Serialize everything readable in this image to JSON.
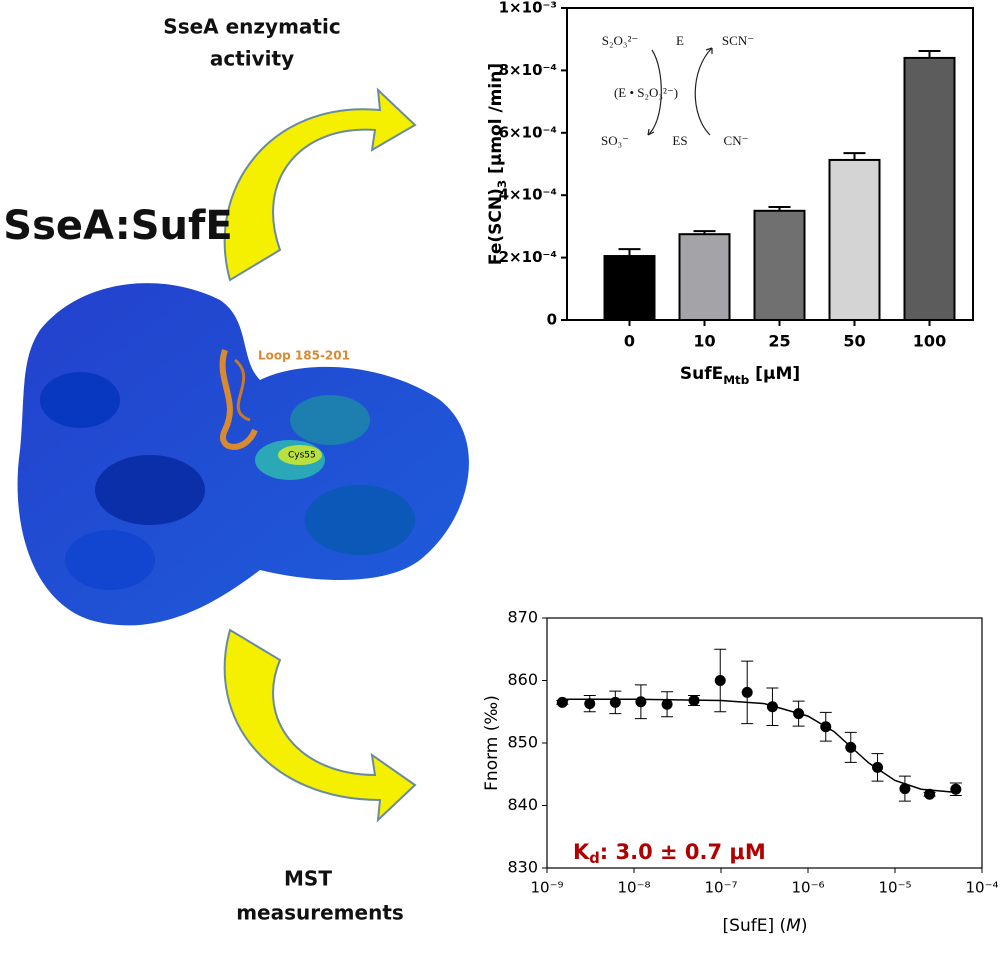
{
  "figure": {
    "title": "SseA:SufE",
    "top_label": [
      "SseA enzymatic",
      "activity"
    ],
    "bottom_label": [
      "MST",
      "measurements"
    ],
    "loop_label": "Loop 185-201",
    "cys_label": "Cys55"
  },
  "chart_data": [
    {
      "type": "bar",
      "categories": [
        "0",
        "10",
        "25",
        "50",
        "100"
      ],
      "values": [
        0.000205,
        0.000275,
        0.00035,
        0.000513,
        0.00084
      ],
      "errors": [
        2.2e-05,
        1e-05,
        1.2e-05,
        2.2e-05,
        2.2e-05
      ],
      "colors": [
        "#000000",
        "#a4a4a8",
        "#707070",
        "#d4d4d4",
        "#5c5c5c"
      ],
      "ylim": [
        0,
        0.001
      ],
      "yticks": [
        0,
        {
          "value": 0.0002,
          "label": "2×10⁻⁴"
        },
        {
          "value": 0.0004,
          "label": "4×10⁻⁴"
        },
        {
          "value": 0.0006,
          "label": "6×10⁻⁴"
        },
        {
          "value": 0.0008,
          "label": "8×10⁻⁴"
        },
        {
          "value": 0.001,
          "label": "1×10⁻³"
        }
      ],
      "x_label": [
        "SufE",
        "Mtb",
        " [µM]"
      ],
      "y_label": [
        "Fe(SCN)",
        "3",
        " [µmol /min]"
      ],
      "annotations": [
        "S₂O₃²⁻",
        "E",
        "SCN⁻",
        "(E • S₂O₃²⁻)",
        "SO₃⁻",
        "ES",
        "CN⁻"
      ]
    },
    {
      "type": "scatter",
      "xlog": true,
      "xlim": [
        1e-09,
        0.0001
      ],
      "xticks": [
        {
          "value": 1e-09,
          "label": "10⁻⁹"
        },
        {
          "value": 1e-08,
          "label": "10⁻⁸"
        },
        {
          "value": 1e-07,
          "label": "10⁻⁷"
        },
        {
          "value": 1e-06,
          "label": "10⁻⁶"
        },
        {
          "value": 1e-05,
          "label": "10⁻⁵"
        },
        {
          "value": 0.0001,
          "label": "10⁻⁴"
        }
      ],
      "ylim": [
        830,
        870
      ],
      "yticks": [
        830,
        840,
        850,
        860,
        870
      ],
      "series": [
        {
          "color": "#000000",
          "x": [
            1.5e-09,
            3.1e-09,
            6.1e-09,
            1.2e-08,
            2.4e-08,
            4.9e-08,
            9.8e-08,
            2e-07,
            3.9e-07,
            7.8e-07,
            1.6e-06,
            3.1e-06,
            6.3e-06,
            1.3e-05,
            2.5e-05,
            5e-05
          ],
          "values": [
            856.5,
            856.3,
            856.5,
            856.6,
            856.2,
            856.8,
            860.0,
            858.1,
            855.8,
            854.7,
            852.6,
            849.3,
            846.1,
            842.7,
            841.8,
            842.6
          ],
          "errors": [
            0.3,
            1.3,
            1.8,
            2.7,
            2.0,
            0.8,
            5.0,
            5.0,
            3.0,
            2.0,
            2.3,
            2.4,
            2.2,
            2.0,
            0.3,
            1.0
          ]
        }
      ],
      "fit": {
        "color": "#000000",
        "x": [
          1.5e-09,
          1e-08,
          1e-07,
          3.16e-07,
          1e-06,
          2e-06,
          3.16e-06,
          5e-06,
          1e-05,
          2e-05,
          5e-05
        ],
        "values": [
          857.0,
          857.0,
          856.8,
          856.3,
          854.3,
          851.8,
          849.3,
          846.8,
          844.0,
          842.6,
          842.1
        ]
      },
      "x_label": [
        "[SufE] (",
        "M",
        ")"
      ],
      "y_label": "Fnorm (‰)",
      "annotation": [
        "K",
        "d",
        ": 3.0 ± 0.7 μM"
      ],
      "annotation_color": "#b00000"
    }
  ]
}
